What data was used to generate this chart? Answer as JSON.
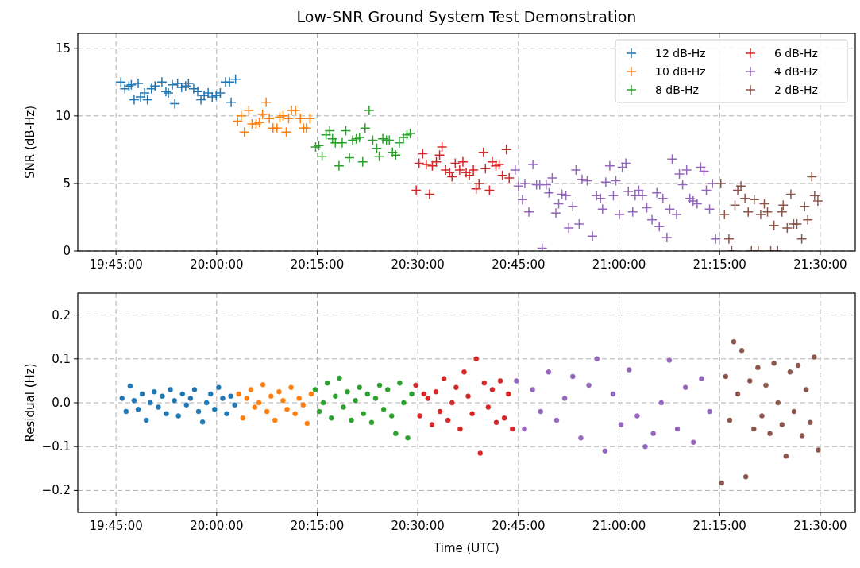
{
  "chart_data": [
    {
      "type": "scatter",
      "title": "Low-SNR Ground System Test Demonstration",
      "ylabel": "SNR (dB-Hz)",
      "xlim": [
        19.655,
        21.587
      ],
      "xticks": [
        {
          "value": 19.75,
          "label": "19:45:00"
        },
        {
          "value": 20,
          "label": "20:00:00"
        },
        {
          "value": 20.25,
          "label": "20:15:00"
        },
        {
          "value": 20.5,
          "label": "20:30:00"
        },
        {
          "value": 20.75,
          "label": "20:45:00"
        },
        {
          "value": 21,
          "label": "21:00:00"
        },
        {
          "value": 21.25,
          "label": "21:15:00"
        },
        {
          "value": 21.5,
          "label": "21:30:00"
        }
      ],
      "ylim": [
        0,
        16.1
      ],
      "yticks": [
        0,
        5,
        10,
        15
      ],
      "grid": true,
      "legend": "top right",
      "marker": "cross",
      "series": [
        {
          "name": "12 dB-Hz",
          "color": "#1f77b4",
          "x": [
            19.762,
            19.772,
            19.782,
            19.788,
            19.805,
            19.795,
            19.811,
            19.821,
            19.828,
            19.838,
            19.847,
            19.864,
            19.874,
            19.88,
            19.89,
            19.896,
            19.903,
            19.913,
            19.923,
            19.93,
            19.943,
            19.953,
            19.961,
            19.969,
            19.979,
            19.989,
            19.999,
            20.009,
            20.022,
            20.032,
            20.036,
            20.047
          ],
          "values": [
            12.5,
            12.0,
            12.2,
            12.3,
            12.4,
            11.2,
            11.4,
            11.7,
            11.2,
            12.0,
            12.2,
            12.5,
            11.8,
            11.7,
            12.3,
            10.9,
            12.4,
            12.1,
            12.2,
            12.4,
            12.0,
            11.8,
            11.2,
            11.5,
            11.7,
            11.4,
            11.5,
            11.7,
            12.5,
            12.5,
            11.0,
            12.7
          ]
        },
        {
          "name": "10 dB-Hz",
          "color": "#ff7f0e",
          "x": [
            20.052,
            20.061,
            20.069,
            20.08,
            20.088,
            20.098,
            20.106,
            20.114,
            20.123,
            20.131,
            20.14,
            20.15,
            20.157,
            20.165,
            20.173,
            20.179,
            20.186,
            20.196,
            20.208,
            20.216,
            20.223,
            20.232
          ],
          "values": [
            9.6,
            10.0,
            8.8,
            10.4,
            9.4,
            9.4,
            9.5,
            10.1,
            11.0,
            9.8,
            9.1,
            9.1,
            9.9,
            10.0,
            8.8,
            9.8,
            10.4,
            10.4,
            9.8,
            9.1,
            9.1,
            9.8
          ]
        },
        {
          "name": "8 dB-Hz",
          "color": "#2ca02c",
          "x": [
            20.246,
            20.254,
            20.262,
            20.272,
            20.281,
            20.288,
            20.295,
            20.304,
            20.312,
            20.321,
            20.33,
            20.338,
            20.347,
            20.355,
            20.363,
            20.369,
            20.379,
            20.388,
            20.398,
            20.404,
            20.413,
            20.422,
            20.429,
            20.437,
            20.445,
            20.454,
            20.464,
            20.473,
            20.481
          ],
          "values": [
            7.7,
            7.8,
            7.0,
            8.6,
            8.9,
            8.3,
            8.0,
            6.3,
            8.0,
            8.9,
            6.9,
            8.2,
            8.3,
            8.4,
            6.6,
            9.1,
            10.4,
            8.2,
            7.6,
            7.0,
            8.3,
            8.2,
            8.2,
            7.3,
            7.1,
            8.0,
            8.4,
            8.6,
            8.7
          ]
        },
        {
          "name": "6 dB-Hz",
          "color": "#d62728",
          "x": [
            20.496,
            20.503,
            20.512,
            20.521,
            20.529,
            20.536,
            20.546,
            20.554,
            20.56,
            20.569,
            20.579,
            20.585,
            20.593,
            20.604,
            20.612,
            20.62,
            20.628,
            20.638,
            20.645,
            20.652,
            20.663,
            20.668,
            20.678,
            20.685,
            20.694,
            20.702,
            20.71,
            20.72,
            20.727
          ],
          "values": [
            4.5,
            6.5,
            7.2,
            6.4,
            4.2,
            6.3,
            6.6,
            7.1,
            7.7,
            6.0,
            5.8,
            5.5,
            6.5,
            6.0,
            6.6,
            5.8,
            5.6,
            6.0,
            4.6,
            5.0,
            7.3,
            6.1,
            4.5,
            6.6,
            6.3,
            6.4,
            5.6,
            7.5,
            5.4
          ]
        },
        {
          "name": "4 dB-Hz",
          "color": "#9467bd",
          "x": [
            20.742,
            20.75,
            20.76,
            20.766,
            20.776,
            20.786,
            20.795,
            20.803,
            20.809,
            20.819,
            20.826,
            20.834,
            20.843,
            20.85,
            20.858,
            20.868,
            20.875,
            20.885,
            20.893,
            20.901,
            20.908,
            20.921,
            20.934,
            20.944,
            20.954,
            20.959,
            20.967,
            20.977,
            20.986,
            20.992,
            21.001,
            21.008,
            21.017,
            21.023,
            21.034,
            21.04,
            21.049,
            21.058,
            21.069,
            21.082,
            21.094,
            21.1,
            21.109,
            21.119,
            21.126,
            21.132,
            21.143,
            21.15,
            21.158,
            21.168,
            21.176,
            21.184,
            21.194,
            21.203,
            21.211,
            21.217,
            21.225,
            21.232,
            21.24
          ],
          "values": [
            6.0,
            4.8,
            3.8,
            5.0,
            2.9,
            6.4,
            4.9,
            4.9,
            0.2,
            4.9,
            4.3,
            5.4,
            2.8,
            3.5,
            4.2,
            4.1,
            1.7,
            3.3,
            6.0,
            2.0,
            5.3,
            5.2,
            1.1,
            4.1,
            3.9,
            3.1,
            5.1,
            6.3,
            4.1,
            5.2,
            2.7,
            6.2,
            6.5,
            4.4,
            2.9,
            4.1,
            4.5,
            4.1,
            3.2,
            2.3,
            4.3,
            1.8,
            3.9,
            1.0,
            3.1,
            6.8,
            2.7,
            5.7,
            4.9,
            6.0,
            3.9,
            3.7,
            3.5,
            6.2,
            5.9,
            4.5,
            3.1,
            5.0,
            0.9
          ]
        },
        {
          "name": "2 dB-Hz",
          "color": "#8c564b",
          "x": [
            21.253,
            21.262,
            21.273,
            21.28,
            21.288,
            21.295,
            21.303,
            21.313,
            21.321,
            21.329,
            21.336,
            21.346,
            21.352,
            21.361,
            21.369,
            21.377,
            21.385,
            21.394,
            21.405,
            21.408,
            21.418,
            21.427,
            21.434,
            21.442,
            21.454,
            21.461,
            21.469,
            21.479,
            21.486,
            21.494
          ],
          "values": [
            5.0,
            2.7,
            0.9,
            0,
            3.4,
            4.5,
            4.8,
            3.9,
            2.9,
            0,
            3.8,
            0,
            2.7,
            3.5,
            2.9,
            0,
            1.9,
            0,
            2.9,
            3.4,
            1.7,
            4.2,
            2.0,
            2.0,
            0.9,
            3.3,
            2.3,
            5.5,
            4.1,
            3.7
          ]
        }
      ]
    },
    {
      "type": "scatter",
      "xlabel": "Time (UTC)",
      "ylabel": "Residual (Hz)",
      "xlim": [
        19.655,
        21.587
      ],
      "xticks": [
        {
          "value": 19.75,
          "label": "19:45:00"
        },
        {
          "value": 20,
          "label": "20:00:00"
        },
        {
          "value": 20.25,
          "label": "20:15:00"
        },
        {
          "value": 20.5,
          "label": "20:30:00"
        },
        {
          "value": 20.75,
          "label": "20:45:00"
        },
        {
          "value": 21,
          "label": "21:00:00"
        },
        {
          "value": 21.25,
          "label": "21:15:00"
        },
        {
          "value": 21.5,
          "label": "21:30:00"
        }
      ],
      "ylim": [
        -0.25,
        0.25
      ],
      "yticks": [
        {
          "value": -0.2,
          "label": "−0.2"
        },
        {
          "value": -0.1,
          "label": "−0.1"
        },
        {
          "value": 0,
          "label": "0.0"
        },
        0.1,
        0.2
      ],
      "grid": true,
      "marker": "circle",
      "series": [
        {
          "color": "#1f77b4",
          "x": [
            19.765,
            19.775,
            19.785,
            19.795,
            19.805,
            19.815,
            19.825,
            19.835,
            19.845,
            19.855,
            19.865,
            19.875,
            19.885,
            19.895,
            19.905,
            19.915,
            19.925,
            19.935,
            19.945,
            19.955,
            19.965,
            19.975,
            19.985,
            19.995,
            20.005,
            20.015,
            20.025,
            20.035,
            20.045
          ],
          "values": [
            0.01,
            -0.02,
            0.038,
            0.005,
            -0.015,
            0.02,
            -0.04,
            0.0,
            0.025,
            -0.01,
            0.015,
            -0.025,
            0.03,
            0.005,
            -0.03,
            0.02,
            -0.005,
            0.01,
            0.03,
            -0.02,
            -0.044,
            0.0,
            0.02,
            -0.015,
            0.035,
            0.01,
            -0.025,
            0.015,
            -0.005
          ]
        },
        {
          "color": "#ff7f0e",
          "x": [
            20.055,
            20.065,
            20.075,
            20.085,
            20.095,
            20.105,
            20.115,
            20.125,
            20.135,
            20.145,
            20.155,
            20.165,
            20.175,
            20.185,
            20.195,
            20.205,
            20.215,
            20.225,
            20.235
          ],
          "values": [
            0.02,
            -0.035,
            0.01,
            0.03,
            -0.01,
            0.0,
            0.041,
            -0.02,
            0.015,
            -0.04,
            0.025,
            0.005,
            -0.015,
            0.035,
            -0.025,
            0.01,
            -0.005,
            -0.047,
            0.02
          ]
        },
        {
          "color": "#2ca02c",
          "x": [
            20.245,
            20.255,
            20.265,
            20.275,
            20.285,
            20.295,
            20.305,
            20.315,
            20.325,
            20.335,
            20.345,
            20.355,
            20.365,
            20.375,
            20.385,
            20.395,
            20.405,
            20.415,
            20.425,
            20.435,
            20.445,
            20.455,
            20.465,
            20.475,
            20.485
          ],
          "values": [
            0.03,
            -0.02,
            0.0,
            0.045,
            -0.035,
            0.015,
            0.056,
            -0.01,
            0.025,
            -0.04,
            0.005,
            0.035,
            -0.025,
            0.02,
            -0.045,
            0.01,
            0.04,
            -0.015,
            0.03,
            -0.03,
            -0.07,
            0.045,
            0.0,
            -0.08,
            0.02
          ]
        },
        {
          "color": "#d62728",
          "x": [
            20.495,
            20.505,
            20.515,
            20.525,
            20.535,
            20.545,
            20.555,
            20.565,
            20.575,
            20.585,
            20.595,
            20.605,
            20.615,
            20.625,
            20.635,
            20.645,
            20.655,
            20.665,
            20.675,
            20.685,
            20.695,
            20.705,
            20.715,
            20.725,
            20.735
          ],
          "values": [
            0.04,
            -0.03,
            0.02,
            0.01,
            -0.05,
            0.025,
            -0.02,
            0.055,
            -0.04,
            0.0,
            0.035,
            -0.06,
            0.07,
            0.015,
            -0.025,
            0.1,
            -0.115,
            0.045,
            -0.01,
            0.03,
            -0.045,
            0.05,
            -0.035,
            0.02,
            -0.06
          ]
        },
        {
          "color": "#9467bd",
          "x": [
            20.745,
            20.765,
            20.785,
            20.805,
            20.825,
            20.845,
            20.865,
            20.885,
            20.905,
            20.925,
            20.945,
            20.965,
            20.985,
            21.005,
            21.025,
            21.045,
            21.065,
            21.085,
            21.105,
            21.125,
            21.145,
            21.165,
            21.185,
            21.205,
            21.225
          ],
          "values": [
            0.05,
            -0.06,
            0.03,
            -0.02,
            0.07,
            -0.04,
            0.01,
            0.06,
            -0.08,
            0.04,
            0.1,
            -0.11,
            0.02,
            -0.05,
            0.075,
            -0.03,
            -0.1,
            -0.07,
            0.0,
            0.097,
            -0.06,
            0.035,
            -0.09,
            0.055,
            -0.02
          ]
        },
        {
          "color": "#8c564b",
          "x": [
            21.255,
            21.265,
            21.275,
            21.285,
            21.295,
            21.305,
            21.315,
            21.325,
            21.335,
            21.345,
            21.355,
            21.365,
            21.375,
            21.385,
            21.395,
            21.405,
            21.415,
            21.425,
            21.435,
            21.445,
            21.455,
            21.465,
            21.475,
            21.485,
            21.495
          ],
          "values": [
            -0.183,
            0.06,
            -0.04,
            0.139,
            0.02,
            0.119,
            -0.169,
            0.05,
            -0.06,
            0.08,
            -0.03,
            0.04,
            -0.07,
            0.09,
            0.0,
            -0.05,
            -0.122,
            0.07,
            -0.02,
            0.085,
            -0.075,
            0.03,
            -0.045,
            0.104,
            -0.108
          ]
        }
      ]
    }
  ]
}
